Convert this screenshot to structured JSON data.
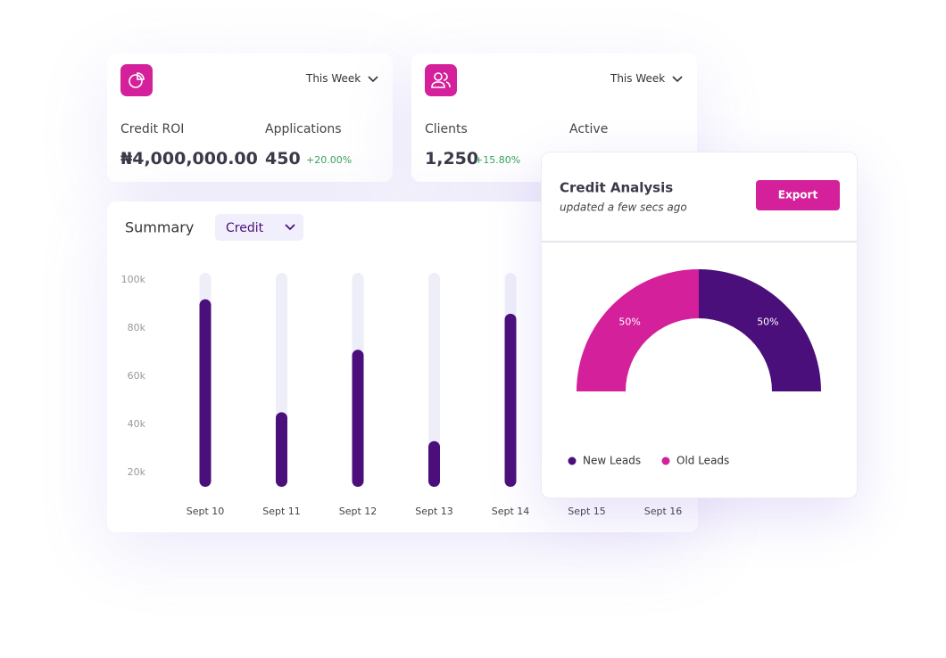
{
  "cards": [
    {
      "period": "This Week",
      "metrics": [
        {
          "label": "Credit ROI",
          "value": "₦4,000,000.00"
        },
        {
          "label": "Applications",
          "value": "450",
          "change": "+20.00%"
        }
      ]
    },
    {
      "period": "This Week",
      "metrics": [
        {
          "label": "Clients",
          "value": "1,250",
          "change": "+15.80%"
        },
        {
          "label": "Active"
        }
      ]
    }
  ],
  "summary": {
    "title": "Summary",
    "filter": "Credit"
  },
  "analysis": {
    "title": "Credit Analysis",
    "subtitle": "updated a few secs ago",
    "button": "Export"
  },
  "chart_data": [
    {
      "type": "bar",
      "categories": [
        "Sept 10",
        "Sept 11",
        "Sept 12",
        "Sept 13",
        "Sept 14",
        "Sept 15",
        "Sept 16"
      ],
      "values": [
        92000,
        45000,
        71000,
        33000,
        86000,
        null,
        null
      ],
      "color": "#4a0f7a",
      "track_color": "#eeeef9",
      "ylim": [
        14000,
        103000
      ],
      "yticks": [
        {
          "value": 20000,
          "label": "20k"
        },
        {
          "value": 40000,
          "label": "40k"
        },
        {
          "value": 60000,
          "label": "60k"
        },
        {
          "value": 80000,
          "label": "80k"
        },
        {
          "value": 100000,
          "label": "100k"
        }
      ]
    },
    {
      "type": "pie",
      "categories": [
        "New Leads",
        "Old Leads"
      ],
      "values": [
        50,
        50
      ],
      "value_labels": [
        "50%",
        "50%"
      ],
      "colors": [
        "#4a0f7a",
        "#d4209a"
      ]
    }
  ]
}
